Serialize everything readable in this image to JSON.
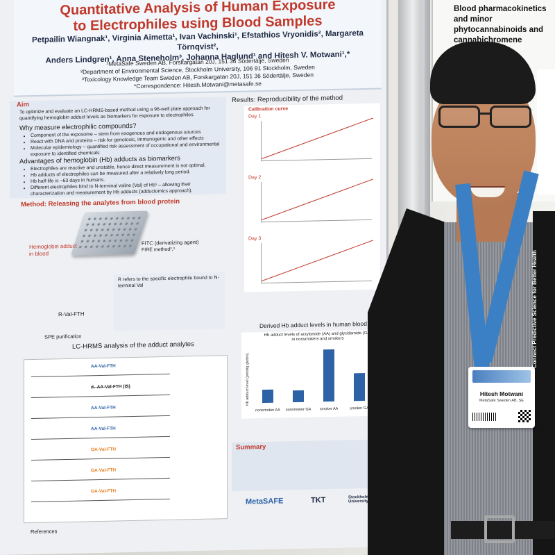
{
  "poster": {
    "title_line1": "Quantitative Analysis of Human Exposure",
    "title_line2": "to Electrophiles using Blood Samples",
    "authors_line1": "Petpailin Wiangnak¹, Virginia Aimetta¹, Ivan Vachinski¹, Efstathios Vryonidis², Margareta Törnqvist²,",
    "authors_line2": "Anders Lindgren¹, Anna Steneholm³, Johanna Haglund¹ and Hitesh V. Motwani¹,*",
    "affil1": "¹MetaSafe Sweden AB, Forskargatan 20J, 151 36 Södertälje, Sweden",
    "affil2": "²Department of Environmental Science, Stockholm University, 106 91 Stockholm, Sweden",
    "affil3": "³Toxicology Knowledge Team Sweden AB, Forskargatan 20J, 151 36 Södertälje, Sweden",
    "affil4": "*Correspondence: Hitesh.Motwani@metasafe.se",
    "aim_title": "Aim",
    "aim_text": "To optimize and evaluate an LC-HRMS-based method using a 96-well plate approach for quantifying hemoglobin adduct levels as biomarkers for exposure to electrophiles.",
    "why_title": "Why measure electrophilic compounds?",
    "why_bullets": [
      "Component of the exposome – stem from exogenous and endogenous sources",
      "React with DNA and proteins – risk for genotoxic, immunogenic and other effects",
      "Molecular epidemiology – quantified risk assessment of occupational and environmental exposure to identified chemicals"
    ],
    "adv_title": "Advantages of hemoglobin (Hb) adducts as biomarkers",
    "adv_bullets": [
      "Electrophiles are reactive and unstable, hence direct measurement is not optimal.",
      "Hb adducts of electrophiles can be measured after a relatively long period.",
      "Hb half-life is ~63 days in humans.",
      "Different electrophiles bind to N-terminal valine (Val) of Hb¹ – allowing their characterization and measurement by Hb adducts (adductomics approach)."
    ],
    "method_title": "Method: Releasing the analytes from blood protein",
    "hb_adduct_label": "Hemoglobin adduct in blood",
    "fitc_label": "FITC (derivatizing agent)",
    "fire_label": "FIRE method²,³",
    "r_val_label": "R-Val-FTH",
    "r_note": "R refers to the specific electrophile bound to N-terminal Val",
    "spe_label": "SPE purification",
    "lc_title": "LC-HRMS analysis of the adduct analytes",
    "traces": [
      "AA-Val-FTH",
      "d₇-AA-Val-FTH (IS)",
      "AA-Val-FTH",
      "AA-Val-FTH",
      "GA-Val-FTH",
      "GA-Val-FTH",
      "GA-Val-FTH"
    ],
    "results_title": "Results: Reproducibility of the method",
    "calib_title": "Calibration curve",
    "days": [
      "Day 1",
      "Day 2",
      "Day 3"
    ],
    "derived_title": "Derived Hb adduct levels in human blood",
    "bar_title": "Hb adduct levels of acrylamide (AA) and glycidamide (GA) in nonsmokers and smokers",
    "bar_ylabel": "Hb adduct level (pmol/g globin)",
    "summary_title": "Summary",
    "logos": [
      "MetaSAFE",
      "TKT",
      "Stockholm University"
    ],
    "references_title": "References"
  },
  "chart_data": {
    "type": "bar",
    "title": "Hb adduct levels of acrylamide (AA) and glycidamide (GA) in nonsmokers and smokers",
    "categories": [
      "nonsmoker AA",
      "nonsmoker GA",
      "smoker AA",
      "smoker GA"
    ],
    "values": [
      38,
      35,
      150,
      80
    ],
    "ylabel": "Hb adduct level (pmol/g globin)",
    "ylim": [
      0,
      160
    ]
  },
  "poster2": {
    "title": "Blood pharmacokinetics and minor phytocannabinoids and cannabichromene metabolites"
  },
  "badge": {
    "name": "Hitesh Motwani",
    "org": "MetaSafe Sweden AB, SE"
  },
  "lanyard": {
    "text": "Connect Predictive Science for Better Health"
  }
}
